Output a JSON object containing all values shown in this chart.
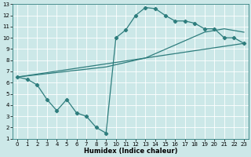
{
  "bg_color": "#cce8e8",
  "grid_color": "#ffffff",
  "line_color": "#2e7d7d",
  "xlabel": "Humidex (Indice chaleur)",
  "xlim": [
    -0.5,
    23.5
  ],
  "ylim": [
    1,
    13
  ],
  "xticks": [
    0,
    1,
    2,
    3,
    4,
    5,
    6,
    7,
    8,
    9,
    10,
    11,
    12,
    13,
    14,
    15,
    16,
    17,
    18,
    19,
    20,
    21,
    22,
    23
  ],
  "yticks": [
    1,
    2,
    3,
    4,
    5,
    6,
    7,
    8,
    9,
    10,
    11,
    12,
    13
  ],
  "curve1_x": [
    0,
    1,
    2,
    3,
    4,
    5,
    6,
    7,
    8,
    9,
    10,
    11,
    12,
    13,
    14,
    15,
    16,
    17,
    18,
    19,
    20,
    21,
    22,
    23
  ],
  "curve1_y": [
    6.5,
    6.3,
    5.8,
    4.5,
    3.5,
    4.5,
    3.3,
    3.0,
    2.0,
    1.5,
    10.0,
    10.7,
    12.0,
    12.7,
    12.6,
    12.0,
    11.5,
    11.5,
    11.3,
    10.8,
    10.8,
    10.0,
    10.0,
    9.5
  ],
  "curve2_x": [
    0,
    9,
    13,
    19,
    21,
    23
  ],
  "curve2_y": [
    6.5,
    7.4,
    8.2,
    10.5,
    10.8,
    10.5
  ],
  "curve3_x": [
    0,
    23
  ],
  "curve3_y": [
    6.5,
    9.5
  ],
  "marker": "D",
  "markersize": 2.2,
  "linewidth": 0.9,
  "tick_fontsize": 5.0,
  "xlabel_fontsize": 6.0
}
